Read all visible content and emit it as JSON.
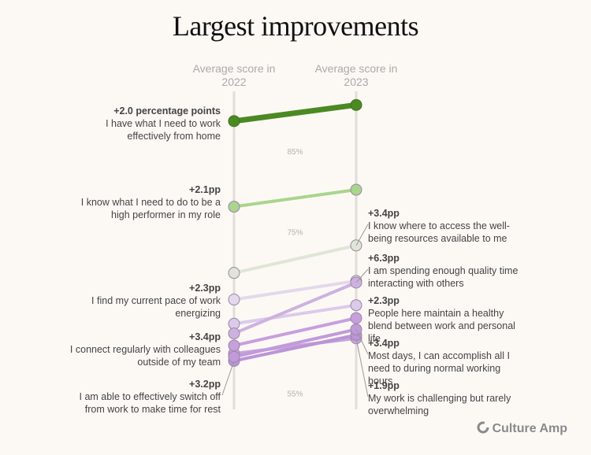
{
  "chart_data": {
    "type": "slope",
    "title": "Largest improvements",
    "categories": [
      "Average score in 2022",
      "Average score in 2023"
    ],
    "ylim": [
      53,
      92
    ],
    "yticks": [
      {
        "value": 55,
        "label": "55%"
      },
      {
        "value": 75,
        "label": "75%"
      },
      {
        "value": 85,
        "label": "85%"
      }
    ],
    "series": [
      {
        "name": "I have what I need to work effectively from home",
        "change_label": "+2.0 percentage points",
        "label_side": "left",
        "color": "#4b8a23",
        "values": [
          88.7,
          90.7
        ]
      },
      {
        "name": "I know what I need to do to be a high performer in my role",
        "change_label": "+2.1pp",
        "label_side": "left",
        "color": "#a9d58c",
        "values": [
          78.1,
          80.2
        ]
      },
      {
        "name": "I know where to access the well-being resources available to me",
        "change_label": "+3.4pp",
        "label_side": "right",
        "color": "#dfe6d6",
        "values": [
          69.9,
          73.3
        ]
      },
      {
        "name": "I am spending enough quality time interacting with others",
        "change_label": "+6.3pp",
        "label_side": "right",
        "color": "#cdb2df",
        "values": [
          62.4,
          68.7
        ]
      },
      {
        "name": "I find my current pace of work energizing",
        "change_label": "+2.3pp",
        "label_side": "left",
        "color": "#e4d8ec",
        "values": [
          66.6,
          68.9
        ]
      },
      {
        "name": "People here maintain a healthy blend between work and personal life",
        "change_label": "+2.3pp",
        "label_side": "right",
        "color": "#dccaea",
        "values": [
          63.6,
          65.9
        ]
      },
      {
        "name": "I connect regularly with colleagues outside of my team",
        "change_label": "+3.4pp",
        "label_side": "left",
        "color": "#c79fdd",
        "values": [
          60.9,
          64.3
        ]
      },
      {
        "name": "Most days, I can accomplish all I need to during normal working hours",
        "change_label": "+3.4pp",
        "label_side": "right",
        "color": "#c19ada",
        "values": [
          59.5,
          62.9
        ]
      },
      {
        "name": "I am able to effectively switch off from work to make time for rest",
        "change_label": "+3.2pp",
        "label_side": "left",
        "color": "#bb94d6",
        "values": [
          59.0,
          62.2
        ]
      },
      {
        "name": "My work is challenging but rarely overwhelming",
        "change_label": "+1.9pp",
        "label_side": "right",
        "color": "#c7a4dc",
        "values": [
          59.9,
          61.8
        ]
      }
    ]
  },
  "footer": {
    "brand": "Culture Amp"
  }
}
